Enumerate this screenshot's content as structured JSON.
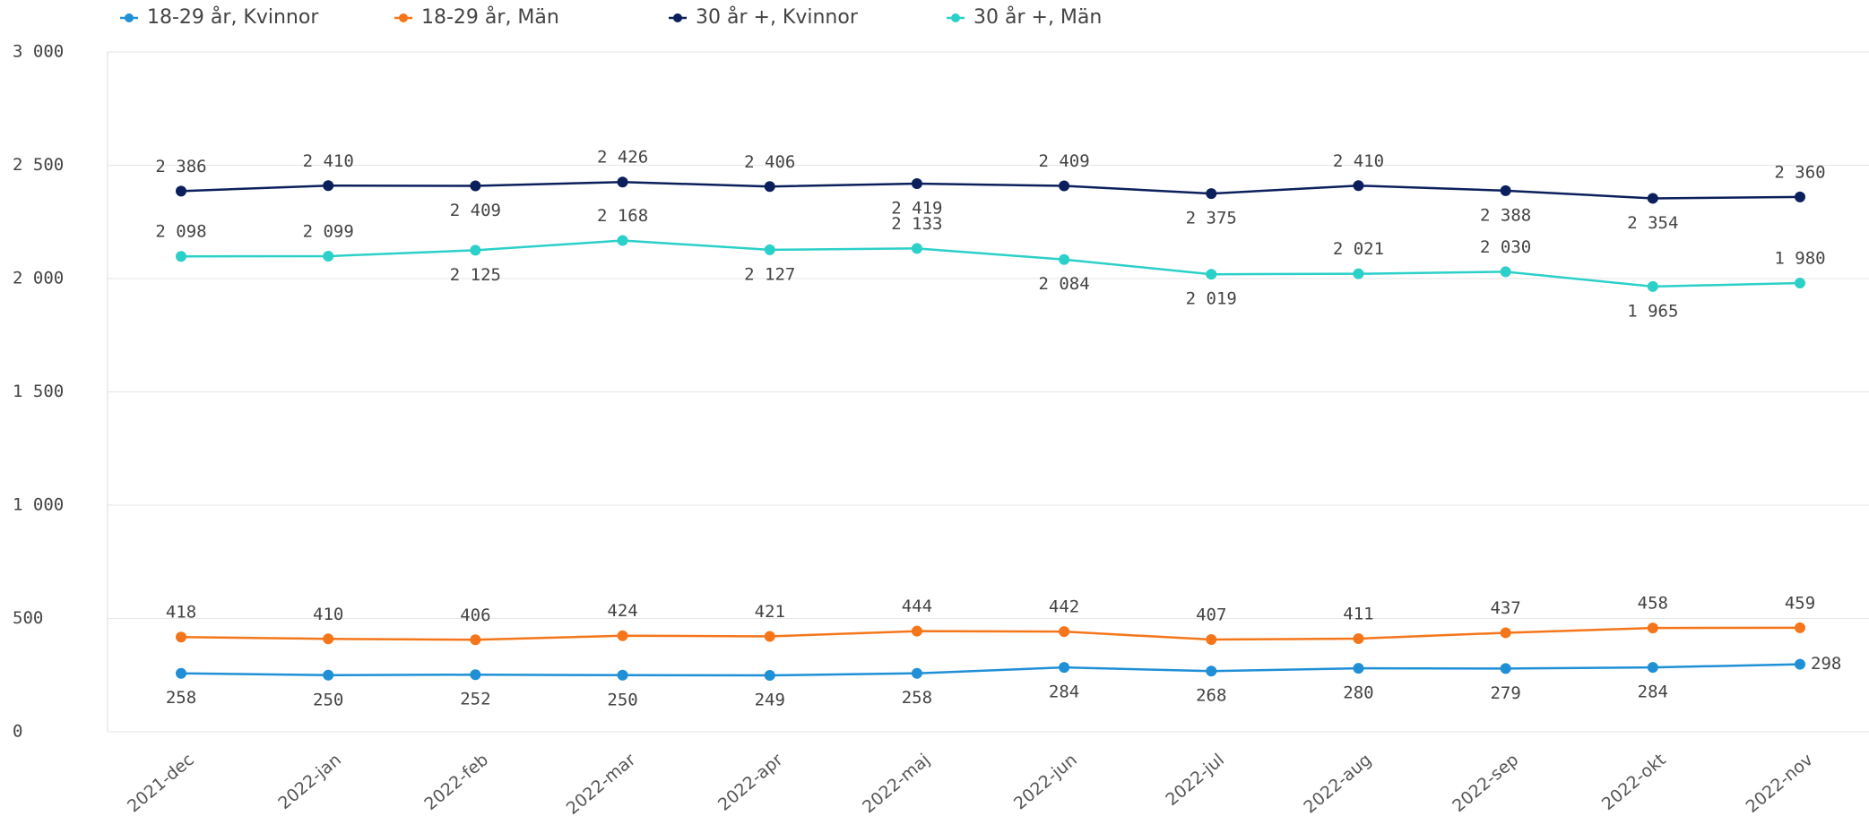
{
  "chart_data": {
    "type": "line",
    "categories": [
      "2021-dec",
      "2022-jan",
      "2022-feb",
      "2022-mar",
      "2022-apr",
      "2022-maj",
      "2022-jun",
      "2022-jul",
      "2022-aug",
      "2022-sep",
      "2022-okt",
      "2022-nov"
    ],
    "series": [
      {
        "name": "18-29 år, Kvinnor",
        "color": "#1f8fd6",
        "values": [
          258,
          250,
          252,
          250,
          249,
          258,
          284,
          268,
          280,
          279,
          284,
          298
        ]
      },
      {
        "name": "18-29 år, Män",
        "color": "#f5761a",
        "values": [
          418,
          410,
          406,
          424,
          421,
          444,
          442,
          407,
          411,
          437,
          458,
          459
        ]
      },
      {
        "name": "30 år +, Kvinnor",
        "color": "#0b1f5c",
        "values": [
          2386,
          2410,
          2409,
          2426,
          2406,
          2419,
          2409,
          2375,
          2410,
          2388,
          2354,
          2360
        ],
        "value_labels": [
          "2 386",
          "2 410",
          "2 409",
          "2 426",
          "2 406",
          "2 419",
          "2 409",
          "2 375",
          "2 410",
          "2 388",
          "2 354",
          "2 360"
        ]
      },
      {
        "name": "30 år +, Män",
        "color": "#2bd0c8",
        "values": [
          2098,
          2099,
          2125,
          2168,
          2127,
          2133,
          2084,
          2019,
          2021,
          2030,
          1965,
          1980
        ],
        "value_labels": [
          "2 098",
          "2 099",
          "2 125",
          "2 168",
          "2 127",
          "2 133",
          "2 084",
          "2 019",
          "2 021",
          "2 030",
          "1 965",
          "1 980"
        ]
      }
    ],
    "ylim": [
      0,
      3000
    ],
    "yticks": [
      0,
      500,
      {
        "value": 1000,
        "label": "1 000"
      },
      {
        "value": 1500,
        "label": "1 500"
      },
      {
        "value": 2000,
        "label": "2 000"
      },
      {
        "value": 2500,
        "label": "2 500"
      },
      {
        "value": 3000,
        "label": "3 000"
      }
    ],
    "grid": true,
    "legend": "top"
  }
}
